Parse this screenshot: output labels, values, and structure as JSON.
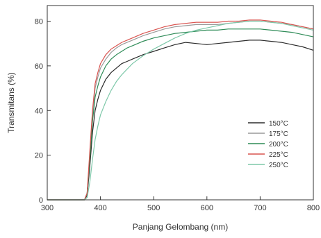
{
  "chart_data": {
    "type": "line",
    "xlabel": "Panjang Gelombang (nm)",
    "ylabel": "Transmitans (%)",
    "xlim": [
      300,
      800
    ],
    "ylim": [
      0,
      87
    ],
    "xticks": [
      300,
      400,
      500,
      600,
      700,
      800
    ],
    "yticks": [
      0,
      20,
      40,
      60,
      80
    ],
    "grid": false,
    "legend": "right",
    "series": [
      {
        "name": "150°C",
        "color": "#2b2b2b",
        "x": [
          300,
          370,
          375,
          380,
          385,
          390,
          395,
          400,
          410,
          420,
          430,
          440,
          450,
          460,
          480,
          500,
          520,
          540,
          560,
          580,
          600,
          620,
          640,
          660,
          680,
          700,
          720,
          740,
          760,
          780,
          800
        ],
        "y": [
          0,
          0,
          2,
          15,
          30,
          40,
          45,
          49,
          54,
          57,
          59,
          61,
          62,
          63,
          65,
          66.5,
          68,
          69.5,
          70.5,
          70,
          69.5,
          70,
          70.5,
          71,
          71.5,
          71.5,
          71,
          70.5,
          69.5,
          68.5,
          67
        ]
      },
      {
        "name": "175°C",
        "color": "#9a9a9a",
        "x": [
          300,
          370,
          375,
          380,
          385,
          390,
          395,
          400,
          410,
          420,
          430,
          440,
          450,
          460,
          480,
          500,
          520,
          540,
          560,
          580,
          600,
          620,
          640,
          660,
          680,
          700,
          720,
          740,
          760,
          780,
          800
        ],
        "y": [
          0,
          0,
          3,
          20,
          38,
          50,
          55,
          59,
          63,
          66,
          68,
          69.5,
          70.5,
          71.5,
          73.5,
          75,
          76.5,
          77.5,
          78,
          78.5,
          78.5,
          78.5,
          79,
          79.5,
          80,
          80,
          79.5,
          79,
          78.5,
          77.5,
          76.5
        ]
      },
      {
        "name": "200°C",
        "color": "#2e8b57",
        "x": [
          300,
          370,
          375,
          380,
          385,
          390,
          395,
          400,
          410,
          420,
          430,
          440,
          450,
          460,
          480,
          500,
          520,
          540,
          560,
          580,
          600,
          620,
          640,
          660,
          680,
          700,
          720,
          740,
          760,
          780,
          800
        ],
        "y": [
          0,
          0,
          3,
          18,
          35,
          46,
          51,
          55,
          60,
          63,
          65,
          66.5,
          68,
          69,
          71,
          72.5,
          73.5,
          74.5,
          75,
          75.5,
          76,
          76,
          76.5,
          76.5,
          76.5,
          76.5,
          76,
          75.5,
          75,
          74,
          73
        ]
      },
      {
        "name": "225°C",
        "color": "#d9534f",
        "x": [
          300,
          370,
          375,
          380,
          385,
          390,
          395,
          400,
          410,
          420,
          430,
          440,
          450,
          460,
          480,
          500,
          520,
          540,
          560,
          580,
          600,
          620,
          640,
          660,
          680,
          700,
          720,
          740,
          760,
          780,
          800
        ],
        "y": [
          0,
          0,
          3,
          22,
          40,
          52,
          57,
          61,
          65,
          67.5,
          69,
          70.5,
          71.5,
          72.5,
          74.5,
          76,
          77.5,
          78.5,
          79,
          79.5,
          79.5,
          79.5,
          80,
          80,
          80.5,
          80.5,
          80,
          79.5,
          78.5,
          77.5,
          76.5
        ]
      },
      {
        "name": "250°C",
        "color": "#7ec8a9",
        "x": [
          300,
          370,
          375,
          380,
          385,
          390,
          395,
          400,
          410,
          420,
          430,
          440,
          450,
          460,
          480,
          500,
          520,
          540,
          560,
          580,
          600,
          620,
          640,
          660,
          680,
          700,
          720,
          740,
          760,
          780,
          800
        ],
        "y": [
          0,
          0,
          1,
          8,
          18,
          27,
          33,
          38,
          44,
          49,
          53,
          56,
          58.5,
          61,
          64.5,
          67.5,
          70,
          72.5,
          74.5,
          76,
          77,
          78,
          79,
          79.5,
          80,
          80,
          79.5,
          79,
          78,
          77,
          76
        ]
      }
    ]
  }
}
